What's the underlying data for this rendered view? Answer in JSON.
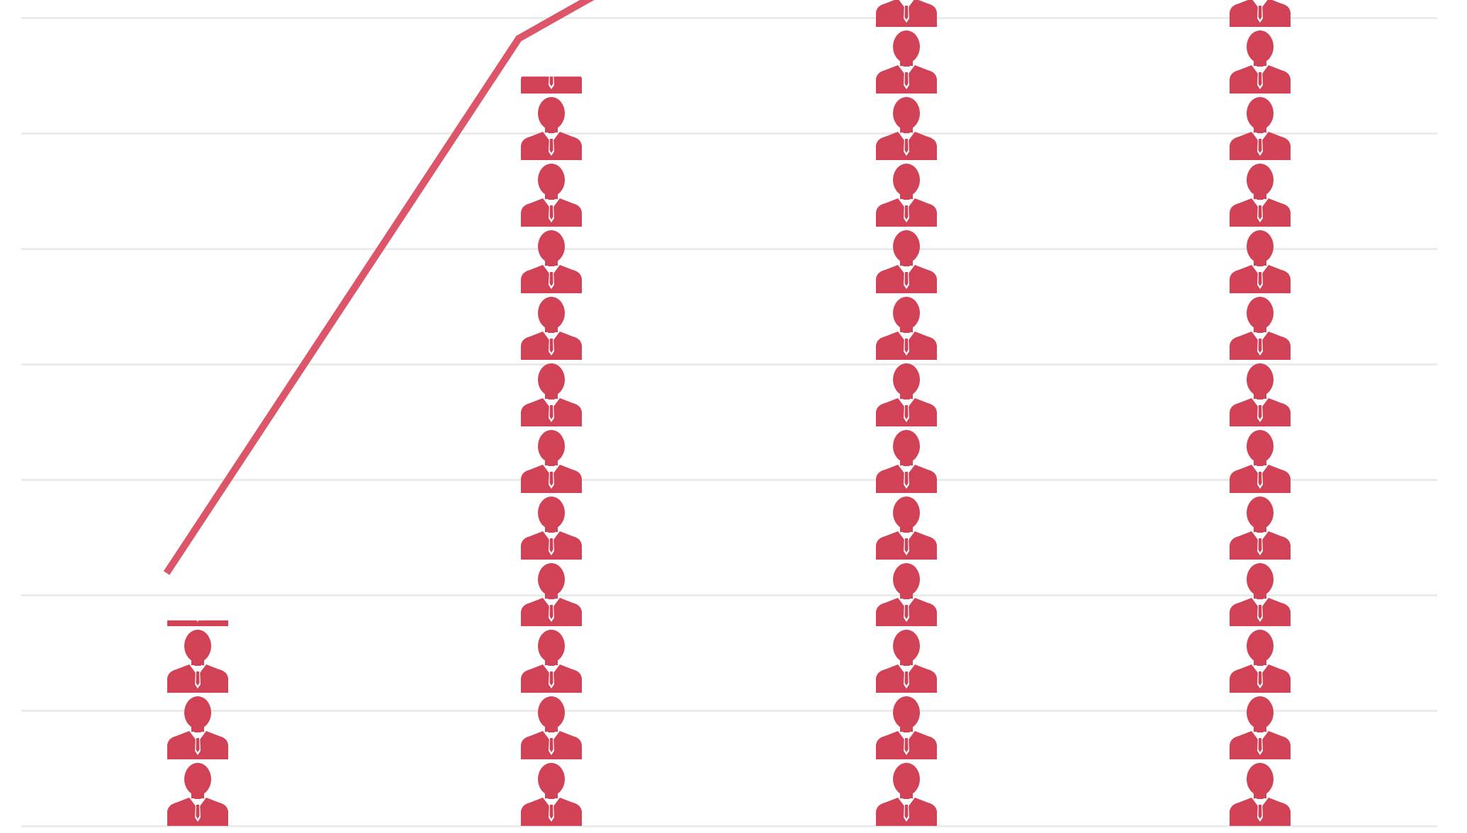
{
  "chart_data": {
    "type": "bar",
    "mark": "stacked-person-icons",
    "categories": [
      "",
      "",
      "",
      ""
    ],
    "values": [
      1.78,
      6.49,
      7.53,
      8.04
    ],
    "trend_line": {
      "values": [
        2.19,
        6.82,
        8.62,
        9.03
      ],
      "arrow_end": true
    },
    "ylim": [
      0,
      9
    ],
    "grid": true,
    "title": "",
    "xlabel": "",
    "ylabel": "",
    "colors": {
      "marks": "#d24257",
      "trend_line": "#dc5568",
      "grid": "#ebebeb",
      "background": "#ffffff"
    }
  }
}
